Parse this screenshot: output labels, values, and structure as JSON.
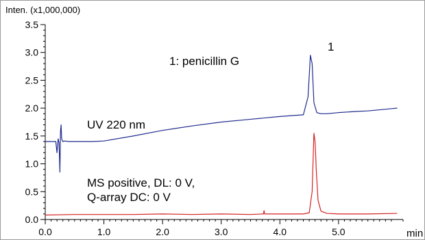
{
  "chart_data": {
    "type": "line",
    "ylabel": "Inten. (x1,000,000)",
    "xlabel": "min",
    "xlim": [
      0.0,
      6.1
    ],
    "ylim": [
      0.0,
      3.5
    ],
    "x_ticks": [
      0.0,
      1.0,
      2.0,
      3.0,
      4.0,
      5.0
    ],
    "x_tick_labels": [
      "0.0",
      "1.0",
      "2.0",
      "3.0",
      "4.0",
      "5.0"
    ],
    "y_ticks": [
      0.0,
      0.5,
      1.0,
      1.5,
      2.0,
      2.5,
      3.0,
      3.5
    ],
    "y_tick_labels": [
      "0.0",
      "0.5",
      "1.0",
      "1.5",
      "2.0",
      "2.5",
      "3.0",
      "3.5"
    ],
    "grid": false,
    "series": [
      {
        "color": "#1f2a8c",
        "x": [
          0.0,
          0.18,
          0.2,
          0.22,
          0.235,
          0.25,
          0.26,
          0.27,
          0.28,
          0.3,
          0.33,
          0.4,
          0.8,
          1.0,
          1.5,
          2.0,
          2.5,
          3.0,
          3.5,
          4.0,
          4.4,
          4.48,
          4.52,
          4.55,
          4.58,
          4.63,
          4.7,
          4.8,
          5.0,
          5.3,
          5.5,
          5.7,
          5.9,
          6.0
        ],
        "y": [
          1.4,
          1.4,
          1.2,
          1.45,
          1.38,
          0.85,
          1.58,
          1.7,
          1.45,
          1.4,
          1.41,
          1.4,
          1.4,
          1.41,
          1.5,
          1.6,
          1.68,
          1.75,
          1.8,
          1.85,
          1.88,
          2.2,
          2.95,
          2.8,
          2.1,
          1.92,
          1.9,
          1.9,
          1.92,
          1.94,
          1.95,
          1.97,
          1.99,
          2.0
        ]
      },
      {
        "color": "#d42020",
        "x": [
          0.0,
          0.5,
          1.0,
          1.5,
          2.0,
          2.5,
          3.0,
          3.5,
          3.72,
          3.73,
          3.74,
          4.0,
          4.4,
          4.5,
          4.55,
          4.58,
          4.6,
          4.62,
          4.65,
          4.7,
          4.8,
          5.0,
          5.5,
          6.0
        ],
        "y": [
          0.08,
          0.09,
          0.09,
          0.09,
          0.1,
          0.09,
          0.1,
          0.09,
          0.1,
          0.16,
          0.1,
          0.1,
          0.1,
          0.12,
          0.5,
          1.55,
          1.4,
          0.9,
          0.35,
          0.15,
          0.11,
          0.1,
          0.1,
          0.11
        ]
      }
    ],
    "annotations": {
      "peak_number": "1",
      "compound": "1: penicillin G",
      "uv_trace_label": "UV 220 nm",
      "ms_trace_label_line1": "MS positive, DL: 0 V,",
      "ms_trace_label_line2": "Q-array DC: 0 V"
    }
  }
}
